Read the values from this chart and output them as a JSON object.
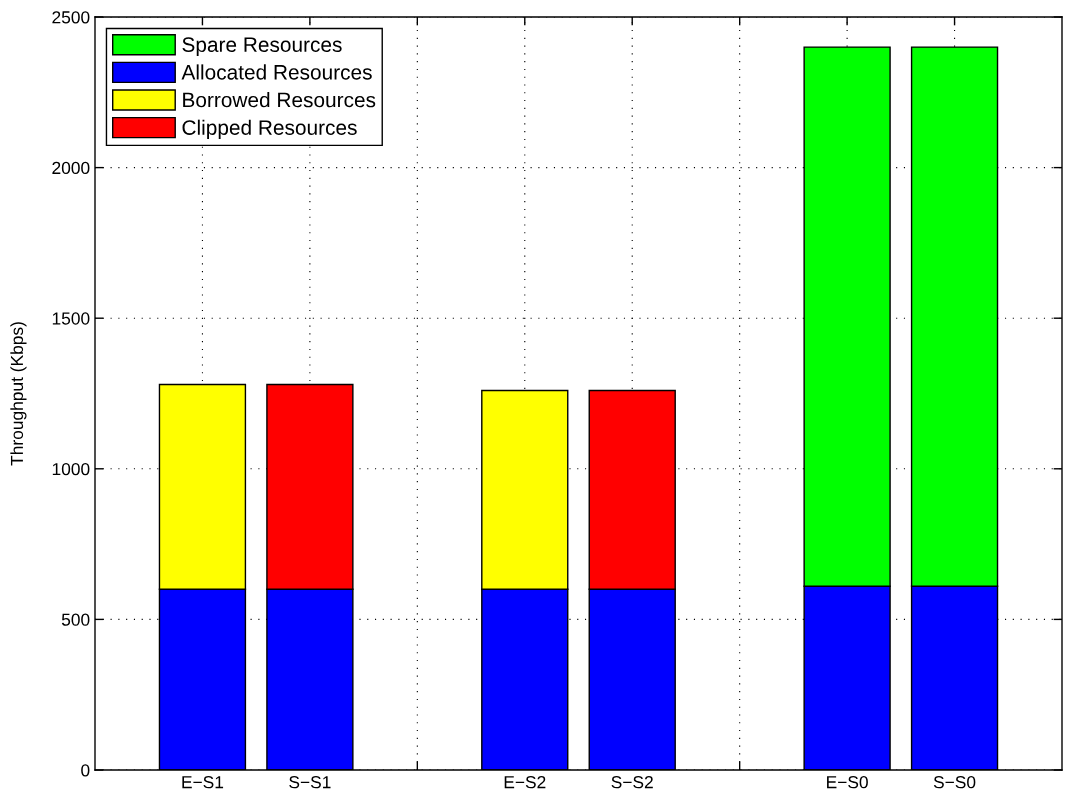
{
  "chart_data": {
    "type": "bar",
    "stacked": true,
    "ylabel": "Throughput (Kbps)",
    "categories": [
      "E−S1",
      "S−S1",
      null,
      "E−S2",
      "S−S2",
      null,
      "E−S0",
      "S−S0"
    ],
    "series": [
      {
        "name": "Allocated Resources",
        "color": "#0000ff",
        "values": [
          600,
          600,
          null,
          600,
          600,
          null,
          610,
          610
        ]
      },
      {
        "name": "Borrowed Resources",
        "color": "#ffff00",
        "values": [
          680,
          null,
          null,
          660,
          null,
          null,
          null,
          null
        ]
      },
      {
        "name": "Clipped Resources",
        "color": "#ff0000",
        "values": [
          null,
          680,
          null,
          null,
          660,
          null,
          null,
          null
        ]
      },
      {
        "name": "Spare Resources",
        "color": "#00ff00",
        "values": [
          null,
          null,
          null,
          null,
          null,
          null,
          1790,
          1790
        ]
      }
    ],
    "ylim": [
      0,
      2500
    ],
    "yticks": [
      0,
      500,
      1000,
      1500,
      2000,
      2500
    ],
    "grid": true,
    "legend": "top left"
  }
}
